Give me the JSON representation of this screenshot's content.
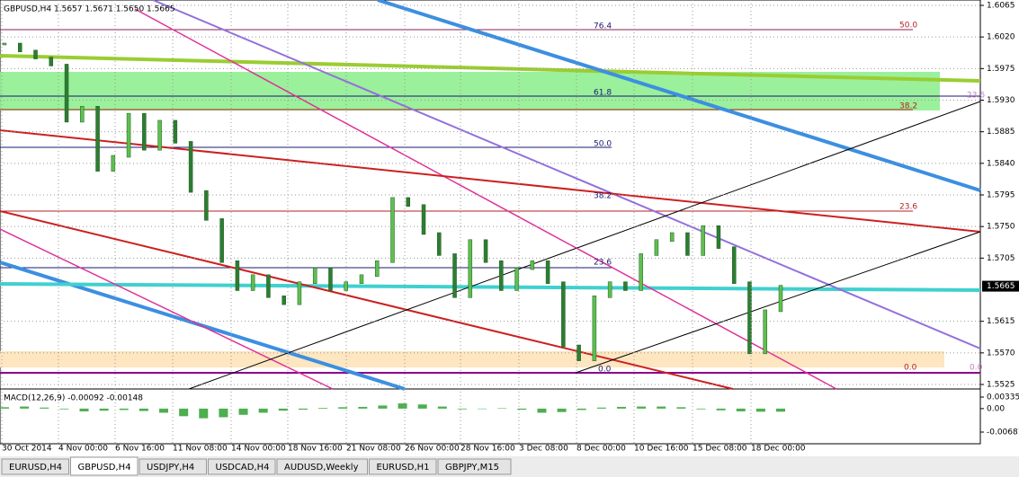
{
  "header": {
    "symbol": "GBPUSD,H4",
    "ohlc": "1.5657 1.5671 1.5650 1.5665"
  },
  "price_axis": [
    {
      "value": 1.6065,
      "label": "1.6065"
    },
    {
      "value": 1.602,
      "label": "1.6020"
    },
    {
      "value": 1.5975,
      "label": "1.5975"
    },
    {
      "value": 1.593,
      "label": "1.5930"
    },
    {
      "value": 1.5885,
      "label": "1.5885"
    },
    {
      "value": 1.584,
      "label": "1.5840"
    },
    {
      "value": 1.5795,
      "label": "1.5795"
    },
    {
      "value": 1.575,
      "label": "1.5750"
    },
    {
      "value": 1.5705,
      "label": "1.5705"
    },
    {
      "value": 1.5615,
      "label": "1.5615"
    },
    {
      "value": 1.557,
      "label": "1.5570"
    },
    {
      "value": 1.5525,
      "label": "1.5525"
    }
  ],
  "current_price": {
    "value": 1.5665,
    "label": "1.5665"
  },
  "closes": [
    1.601,
    1.6,
    1.599,
    1.598,
    1.59,
    1.592,
    1.583,
    1.585,
    1.591,
    1.586,
    1.59,
    1.587,
    1.58,
    1.576,
    1.57,
    1.566,
    1.568,
    1.565,
    1.564,
    1.567,
    1.569,
    1.566,
    1.567,
    1.568,
    1.57,
    1.579,
    1.578,
    1.574,
    1.571,
    1.565,
    1.573,
    1.57,
    1.566,
    1.569,
    1.57,
    1.567,
    1.558,
    1.556,
    1.565,
    1.567,
    1.566,
    1.571,
    1.573,
    1.574,
    1.571,
    1.575,
    1.572,
    1.567,
    1.557,
    1.563,
    1.5665
  ],
  "fib_labels": [
    "76.4",
    "50.0",
    "61.8",
    "23.6",
    "38.2",
    "50.0",
    "38.2",
    "23.6",
    "23.6",
    "0.0",
    "0.0",
    "0.0"
  ],
  "macd": {
    "label": "MACD(12,26,9) -0.00092 -0.00148",
    "axis": [
      {
        "value": 0.00335,
        "label": "0.00335"
      },
      {
        "value": 0,
        "label": "0.00"
      },
      {
        "value": -0.00681,
        "label": "-0.00681"
      }
    ],
    "values": [
      0.0004,
      0.0006,
      0.0003,
      -0.0002,
      -0.0008,
      -0.0006,
      -0.0004,
      -0.0007,
      -0.0012,
      -0.0022,
      -0.0028,
      -0.0025,
      -0.0018,
      -0.0012,
      -0.0006,
      -0.0003,
      0.0002,
      0.0004,
      0.0005,
      0.0009,
      0.0015,
      0.0012,
      0.0006,
      -0.0002,
      -0.0001,
      0.0001,
      -0.0003,
      -0.0012,
      -0.001,
      -0.0004,
      0.0003,
      0.0005,
      0.0006,
      0.0006,
      0.0004,
      -0.0002,
      -0.0005,
      -0.0008,
      -0.0009,
      -0.0009
    ]
  },
  "time_axis": [
    "30 Oct 2014",
    "4 Nov 00:00",
    "6 Nov 16:00",
    "11 Nov 08:00",
    "14 Nov 00:00",
    "18 Nov 16:00",
    "21 Nov 08:00",
    "26 Nov 00:00",
    "28 Nov 16:00",
    "3 Dec 08:00",
    "8 Dec 00:00",
    "10 Dec 16:00",
    "15 Dec 08:00",
    "18 Dec 00:00"
  ],
  "tabs": [
    "EURUSD,H4",
    "GBPUSD,H4",
    "USDJPY,H4",
    "USDCAD,H4",
    "AUDUSD,Weekly",
    "EURUSD,H1",
    "GBPJPY,M15"
  ]
}
